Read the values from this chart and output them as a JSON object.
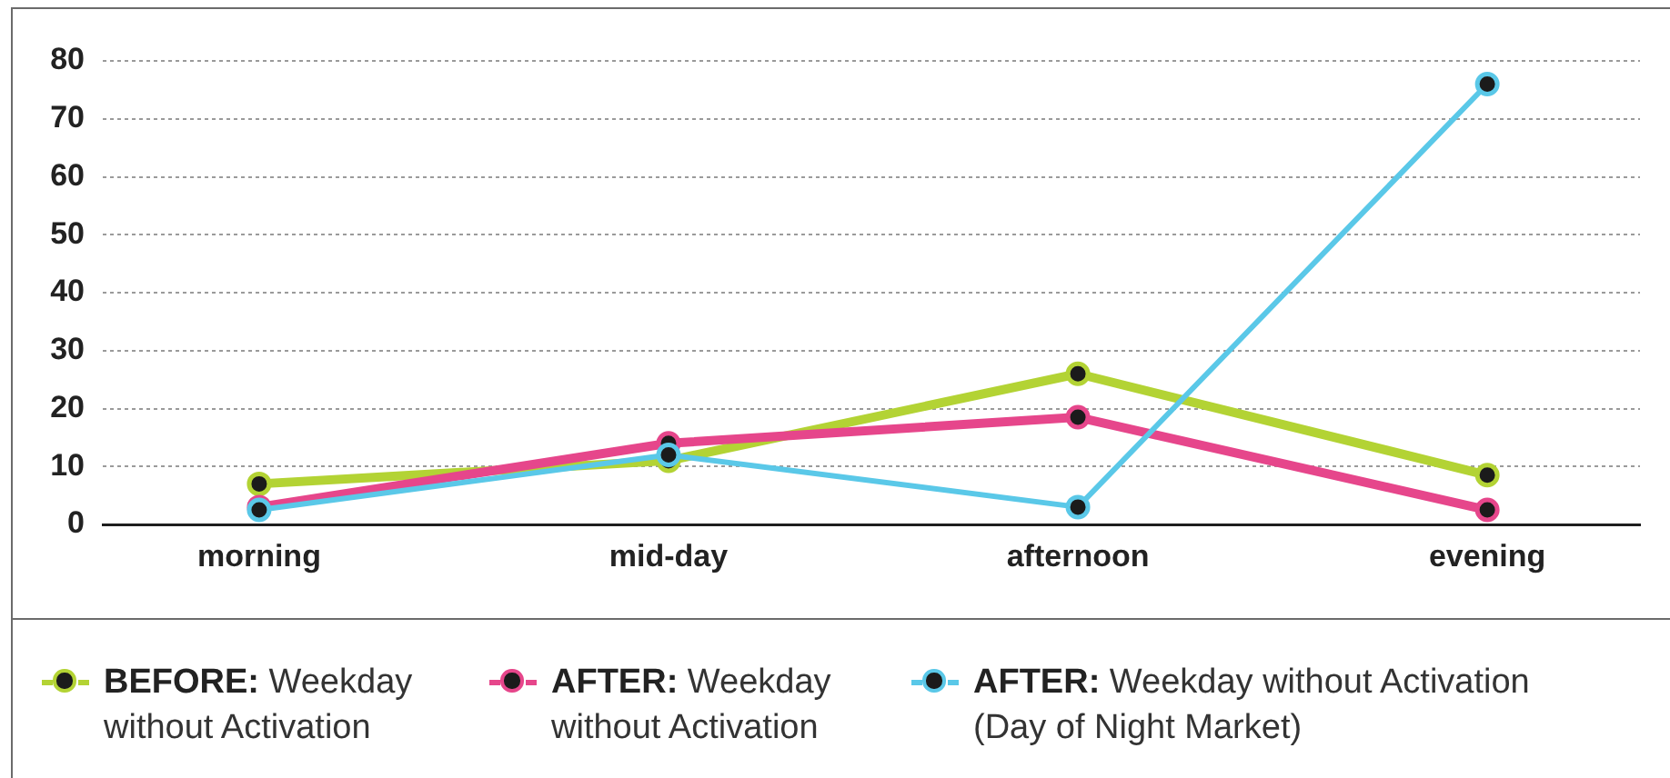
{
  "chart_data": {
    "type": "line",
    "categories": [
      "morning",
      "mid-day",
      "afternoon",
      "evening"
    ],
    "series": [
      {
        "name": "BEFORE: Weekday without Activation",
        "color": "#b3d334",
        "values": [
          7,
          11,
          26,
          8.5
        ]
      },
      {
        "name": "AFTER: Weekday without Activation",
        "color": "#e6468b",
        "values": [
          3,
          14,
          18.5,
          2.5
        ]
      },
      {
        "name": "AFTER: Weekday without Activation (Day of Night Market)",
        "color": "#5ac8e8",
        "values": [
          2.5,
          12,
          3,
          76
        ]
      }
    ],
    "ylim": [
      0,
      80
    ],
    "yticks": [
      0,
      10,
      20,
      30,
      40,
      50,
      60,
      70,
      80
    ],
    "grid": "y",
    "legend": "bottom",
    "marker": "circle",
    "line_style": "solid"
  }
}
